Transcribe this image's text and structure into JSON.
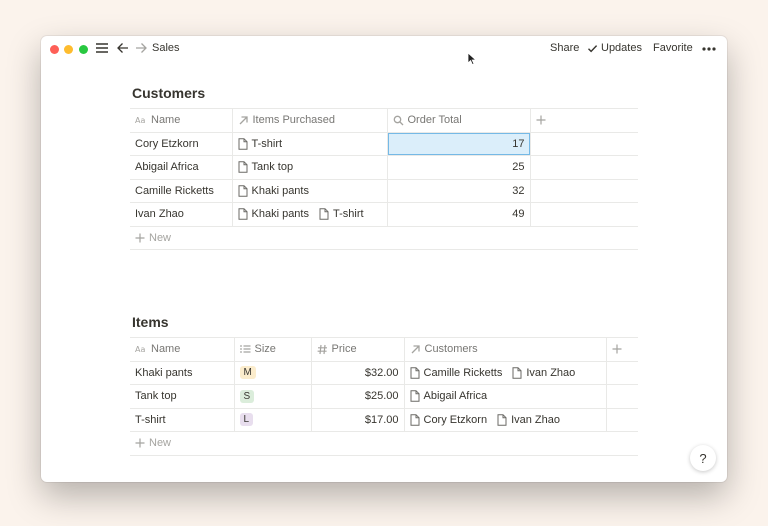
{
  "topbar": {
    "breadcrumb": "Sales",
    "share_label": "Share",
    "updates_label": "Updates",
    "favorite_label": "Favorite"
  },
  "customers": {
    "title": "Customers",
    "columns": {
      "name": "Name",
      "items": "Items Purchased",
      "total": "Order Total"
    },
    "rows": [
      {
        "name": "Cory Etzkorn",
        "items": [
          "T-shirt"
        ],
        "total": "17"
      },
      {
        "name": "Abigail Africa",
        "items": [
          "Tank top"
        ],
        "total": "25"
      },
      {
        "name": "Camille Ricketts",
        "items": [
          "Khaki pants"
        ],
        "total": "32"
      },
      {
        "name": "Ivan Zhao",
        "items": [
          "Khaki pants",
          "T-shirt"
        ],
        "total": "49"
      }
    ],
    "new_label": "New"
  },
  "items": {
    "title": "Items",
    "columns": {
      "name": "Name",
      "size": "Size",
      "price": "Price",
      "customers": "Customers"
    },
    "rows": [
      {
        "name": "Khaki pants",
        "size": "M",
        "size_color": "#fbeccc",
        "price": "$32.00",
        "customers": [
          "Camille Ricketts",
          "Ivan Zhao"
        ]
      },
      {
        "name": "Tank top",
        "size": "S",
        "size_color": "#dbeddb",
        "price": "$25.00",
        "customers": [
          "Abigail Africa"
        ]
      },
      {
        "name": "T-shirt",
        "size": "L",
        "size_color": "#e8deee",
        "price": "$17.00",
        "customers": [
          "Cory Etzkorn",
          "Ivan Zhao"
        ]
      }
    ],
    "new_label": "New"
  },
  "help_label": "?"
}
